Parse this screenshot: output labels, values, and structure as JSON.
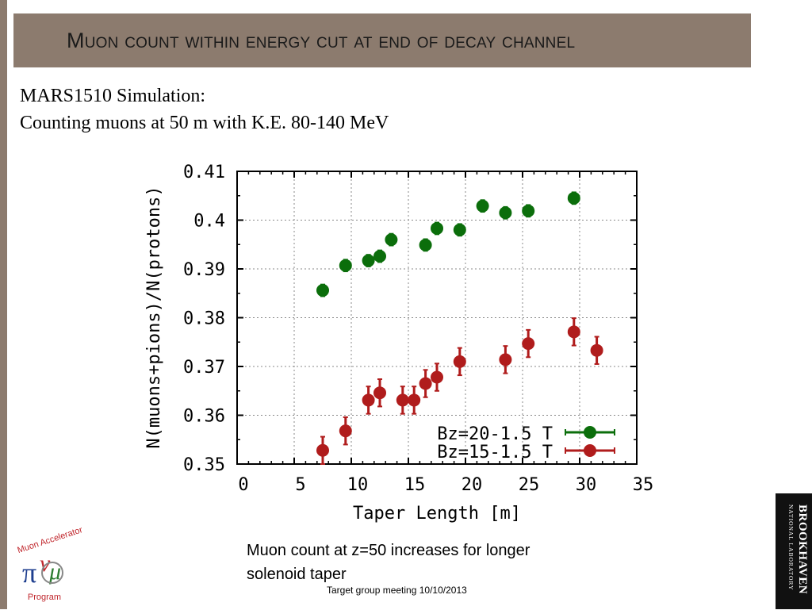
{
  "slide": {
    "title": "Muon count within energy cut at end of decay channel",
    "subtitle_line1": "MARS1510 Simulation:",
    "subtitle_line2": "Counting muons at 50 m with K.E. 80-140 MeV",
    "caption": "Muon count at z=50 increases for longer solenoid taper",
    "footer": "Target group meeting 10/10/2013",
    "logo_left_text_top": "Muon Accelerator",
    "logo_left_text_bottom": "Program",
    "logo_right_text_main": "BROOKHAVEN",
    "logo_right_text_sub": "NATIONAL LABORATORY"
  },
  "colors": {
    "title_band": "#8c7b6e",
    "series_green": "#0b6e0b",
    "series_red": "#b01c1c"
  },
  "chart_data": {
    "type": "scatter",
    "title": "",
    "xlabel": "Taper Length [m]",
    "ylabel": "N(muons+pions)/N(protons)",
    "xlim": [
      0,
      35
    ],
    "ylim": [
      0.35,
      0.41
    ],
    "xticks": [
      "0",
      "5",
      "10",
      "15",
      "20",
      "25",
      "30",
      "35"
    ],
    "yticks": [
      "0.35",
      "0.36",
      "0.37",
      "0.38",
      "0.39",
      "0.4",
      "0.41"
    ],
    "grid": true,
    "legend_position": "bottom-right",
    "series": [
      {
        "name": "Bz=20-1.5 T",
        "color": "#0b6e0b",
        "points": [
          {
            "x": 7.5,
            "y": 0.3856,
            "err": 0.0012
          },
          {
            "x": 9.5,
            "y": 0.3907,
            "err": 0.0012
          },
          {
            "x": 11.5,
            "y": 0.3917,
            "err": 0.0012
          },
          {
            "x": 12.5,
            "y": 0.3926,
            "err": 0.0012
          },
          {
            "x": 13.5,
            "y": 0.396,
            "err": 0.0012
          },
          {
            "x": 16.5,
            "y": 0.3949,
            "err": 0.0012
          },
          {
            "x": 17.5,
            "y": 0.3983,
            "err": 0.0012
          },
          {
            "x": 19.5,
            "y": 0.398,
            "err": 0.0012
          },
          {
            "x": 21.5,
            "y": 0.4029,
            "err": 0.0012
          },
          {
            "x": 23.5,
            "y": 0.4015,
            "err": 0.0012
          },
          {
            "x": 25.5,
            "y": 0.4019,
            "err": 0.0012
          },
          {
            "x": 29.5,
            "y": 0.4045,
            "err": 0.0012
          }
        ]
      },
      {
        "name": "Bz=15-1.5 T",
        "color": "#b01c1c",
        "points": [
          {
            "x": 7.5,
            "y": 0.3528,
            "err": 0.0028
          },
          {
            "x": 9.5,
            "y": 0.3568,
            "err": 0.0028
          },
          {
            "x": 11.5,
            "y": 0.3631,
            "err": 0.0028
          },
          {
            "x": 12.5,
            "y": 0.3646,
            "err": 0.0028
          },
          {
            "x": 14.5,
            "y": 0.3631,
            "err": 0.0028
          },
          {
            "x": 15.5,
            "y": 0.3631,
            "err": 0.0028
          },
          {
            "x": 16.5,
            "y": 0.3665,
            "err": 0.0028
          },
          {
            "x": 17.5,
            "y": 0.3678,
            "err": 0.0028
          },
          {
            "x": 19.5,
            "y": 0.371,
            "err": 0.0028
          },
          {
            "x": 23.5,
            "y": 0.3714,
            "err": 0.0028
          },
          {
            "x": 25.5,
            "y": 0.3747,
            "err": 0.0028
          },
          {
            "x": 29.5,
            "y": 0.3771,
            "err": 0.0028
          },
          {
            "x": 31.5,
            "y": 0.3733,
            "err": 0.0028
          }
        ]
      }
    ]
  }
}
